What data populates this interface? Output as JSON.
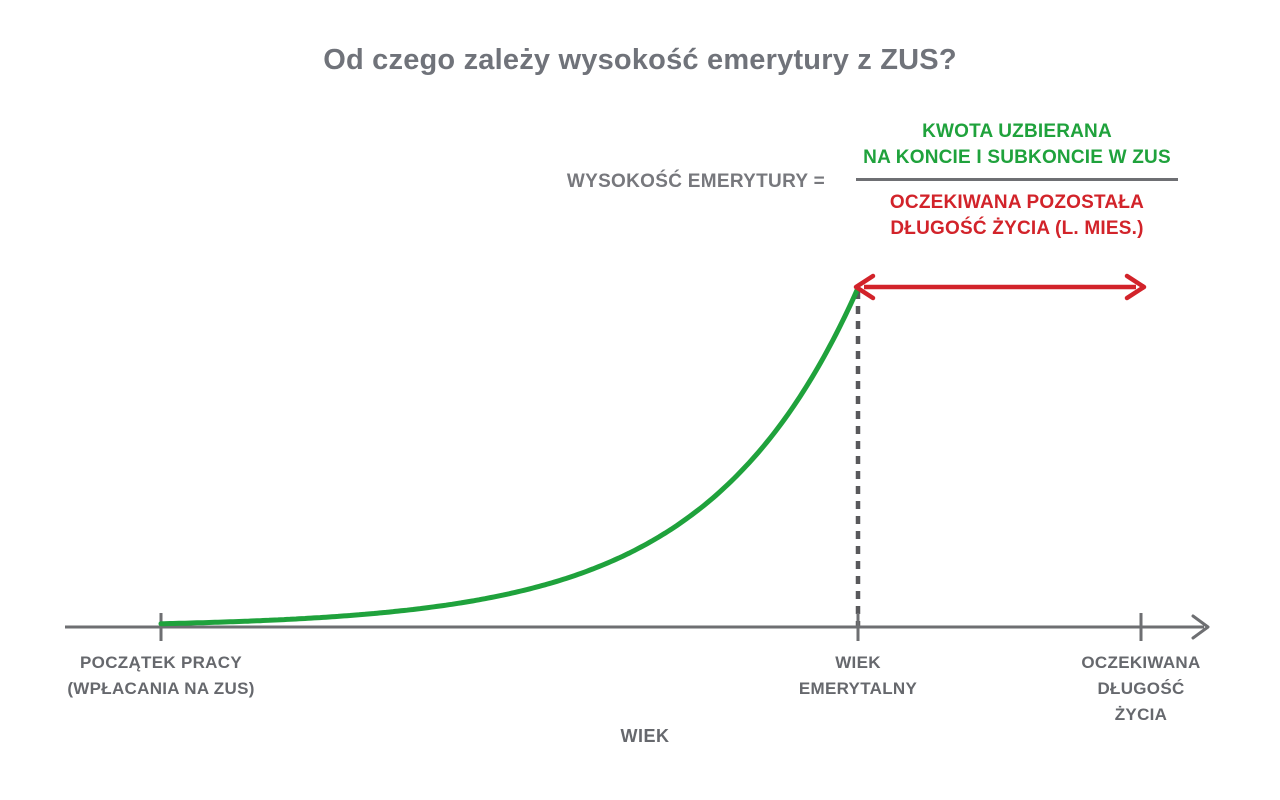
{
  "title": "Od czego zależy wysokość emerytury z ZUS?",
  "formula": {
    "lhs_label": "WYSOKOŚĆ EMERYTURY =",
    "numerator": {
      "line1": "KWOTA UZBIERANA",
      "line2": "NA KONCIE I SUBKONCIE W ZUS"
    },
    "denominator": {
      "line1": "OCZEKIWANA POZOSTAŁA",
      "line2": "DŁUGOŚĆ ŻYCIA (L. MIES.)"
    }
  },
  "chart": {
    "x_axis_label": "WIEK",
    "tick_labels": [
      {
        "lines": [
          "POCZĄTEK PRACY",
          "(WPŁACANIA NA ZUS)"
        ]
      },
      {
        "lines": [
          "WIEK",
          "EMERYTALNY"
        ]
      },
      {
        "lines": [
          "OCZEKIWANA",
          "DŁUGOŚĆ",
          "ŻYCIA"
        ]
      }
    ]
  },
  "colors": {
    "curve_green": "#1FA23C",
    "arrow_red": "#D2232A",
    "text_gray": "#70737A",
    "label_gray": "#66686D",
    "axis_gray": "#6E6F72",
    "dash_gray": "#58585B"
  }
}
